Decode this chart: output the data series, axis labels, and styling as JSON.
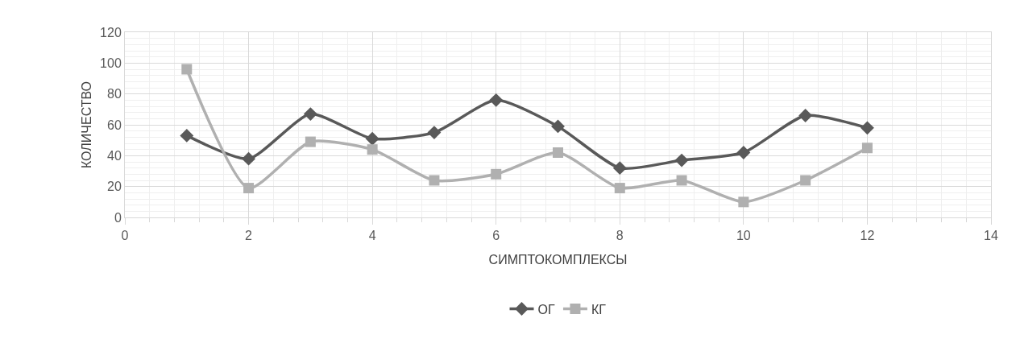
{
  "chart_data": {
    "type": "line",
    "xlabel": "СИМПТОКОМПЛЕКСЫ",
    "ylabel": "КОЛИЧЕСТВО",
    "x": [
      1,
      2,
      3,
      4,
      5,
      6,
      7,
      8,
      9,
      10,
      11,
      12
    ],
    "series": [
      {
        "name": "ОГ",
        "color": "#595959",
        "marker": "diamond",
        "values": [
          53,
          38,
          67,
          51,
          55,
          76,
          59,
          32,
          37,
          42,
          66,
          58
        ]
      },
      {
        "name": "КГ",
        "color": "#b0b0b0",
        "marker": "square",
        "values": [
          96,
          19,
          49,
          44,
          24,
          28,
          42,
          19,
          24,
          10,
          24,
          45
        ]
      }
    ],
    "xlim": [
      0,
      14
    ],
    "xticks": [
      0,
      2,
      4,
      6,
      8,
      10,
      12,
      14
    ],
    "ylim": [
      0,
      120
    ],
    "yticks": [
      0,
      20,
      40,
      60,
      80,
      100,
      120
    ],
    "grid": true,
    "legend": "bottom",
    "line_style": "solid"
  }
}
